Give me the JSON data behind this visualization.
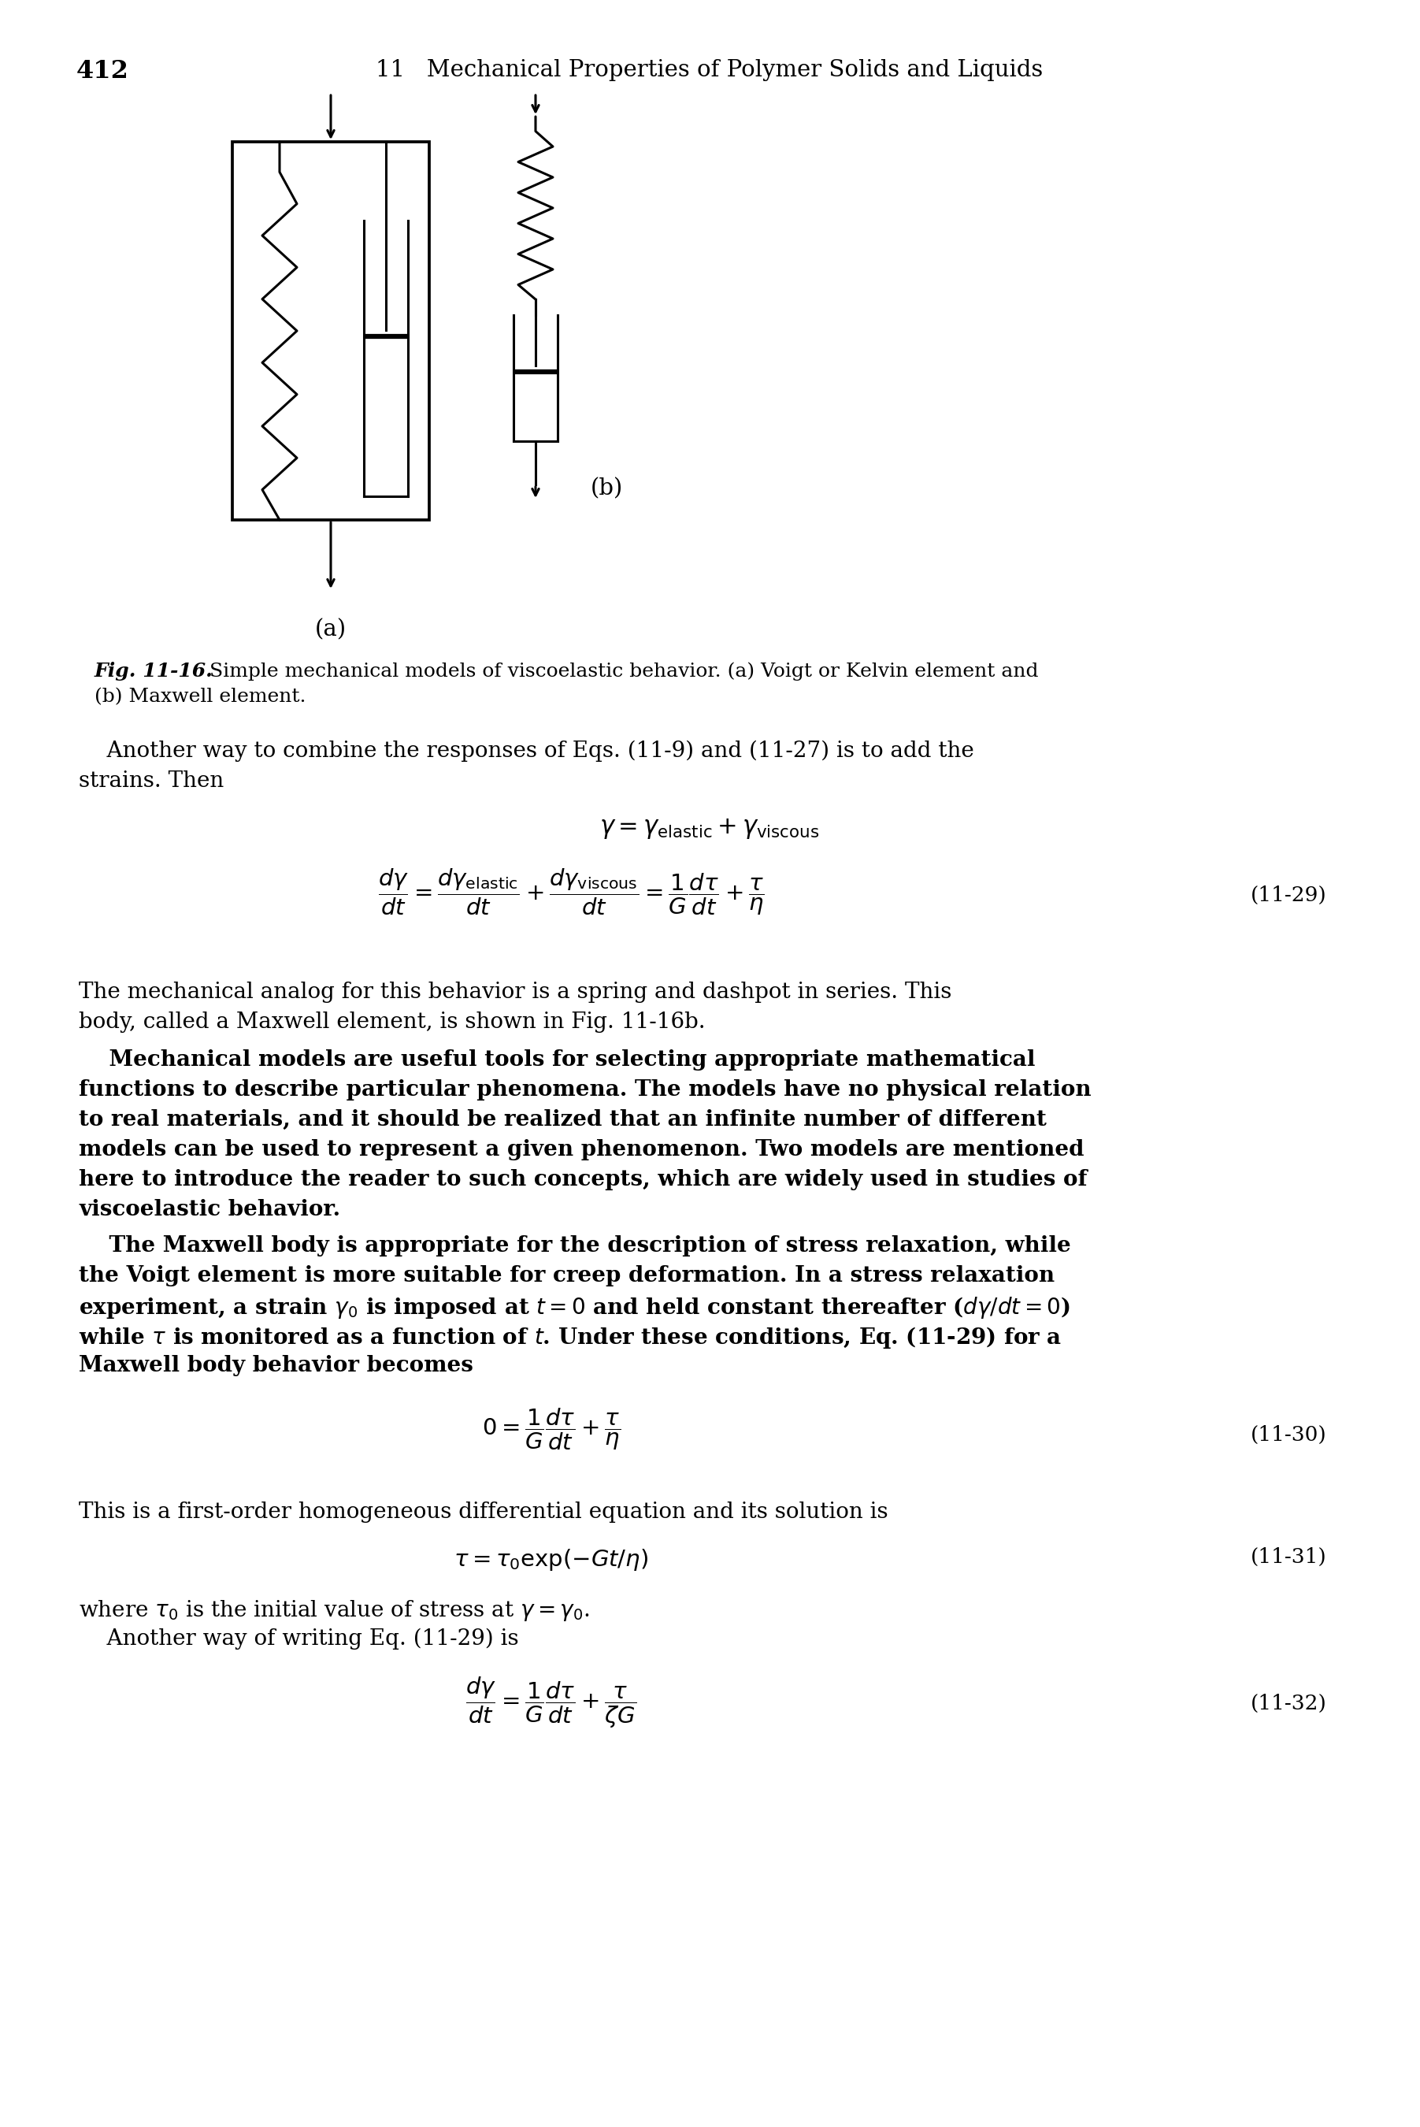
{
  "page_number": "412",
  "header": "11   Mechanical Properties of Polymer Solids and Liquids",
  "background_color": "#ffffff",
  "text_color": "#000000",
  "fig_caption_bold": "Fig. 11-16.",
  "fig_caption_rest": "  Simple mechanical models of viscoelastic behavior. (a) Voigt or Kelvin element and",
  "fig_caption_line2": "(b) Maxwell element.",
  "para1_line1": "    Another way to combine the responses of Eqs. (11-9) and (11-27) is to add the",
  "para1_line2": "strains. Then",
  "eq_gamma": "$\\gamma = \\gamma_{\\mathrm{elastic}} + \\gamma_{\\mathrm{viscous}}$",
  "eq_main": "$\\dfrac{d\\gamma}{dt} = \\dfrac{d\\gamma_{\\mathrm{elastic}}}{dt} + \\dfrac{d\\gamma_{\\mathrm{viscous}}}{dt} = \\dfrac{1}{G}\\dfrac{d\\tau}{dt} + \\dfrac{\\tau}{\\eta}$",
  "eq1129": "(11-29)",
  "para2_line1": "The mechanical analog for this behavior is a spring and dashpot in series. This",
  "para2_line2": "body, called a Maxwell element, is shown in Fig. 11-16b.",
  "para3": [
    "    Mechanical models are useful tools for selecting appropriate mathematical",
    "functions to describe particular phenomena. The models have no physical relation",
    "to real materials, and it should be realized that an infinite number of different",
    "models can be used to represent a given phenomenon. Two models are mentioned",
    "here to introduce the reader to such concepts, which are widely used in studies of",
    "viscoelastic behavior."
  ],
  "para4": [
    "    The Maxwell body is appropriate for the description of stress relaxation, while",
    "the Voigt element is more suitable for creep deformation. In a stress relaxation",
    "experiment, a strain $\\gamma_0$ is imposed at $t = 0$ and held constant thereafter ($d\\gamma/dt = 0$)",
    "while $\\tau$ is monitored as a function of $t$. Under these conditions, Eq. (11-29) for a",
    "Maxwell body behavior becomes"
  ],
  "eq1130_lhs": "$0 = \\dfrac{1}{G}\\dfrac{d\\tau}{dt} + \\dfrac{\\tau}{\\eta}$",
  "eq1130": "(11-30)",
  "para5": "This is a first-order homogeneous differential equation and its solution is",
  "eq1131_lhs": "$\\tau = \\tau_0 \\exp(-Gt/\\eta)$",
  "eq1131": "(11-31)",
  "para6_line1": "where $\\tau_0$ is the initial value of stress at $\\gamma = \\gamma_0$.",
  "para6_line2": "    Another way of writing Eq. (11-29) is",
  "eq1132_lhs": "$\\dfrac{d\\gamma}{dt} = \\dfrac{1}{G}\\dfrac{d\\tau}{dt} + \\dfrac{\\tau}{\\zeta G}$",
  "eq1132": "(11-32)"
}
